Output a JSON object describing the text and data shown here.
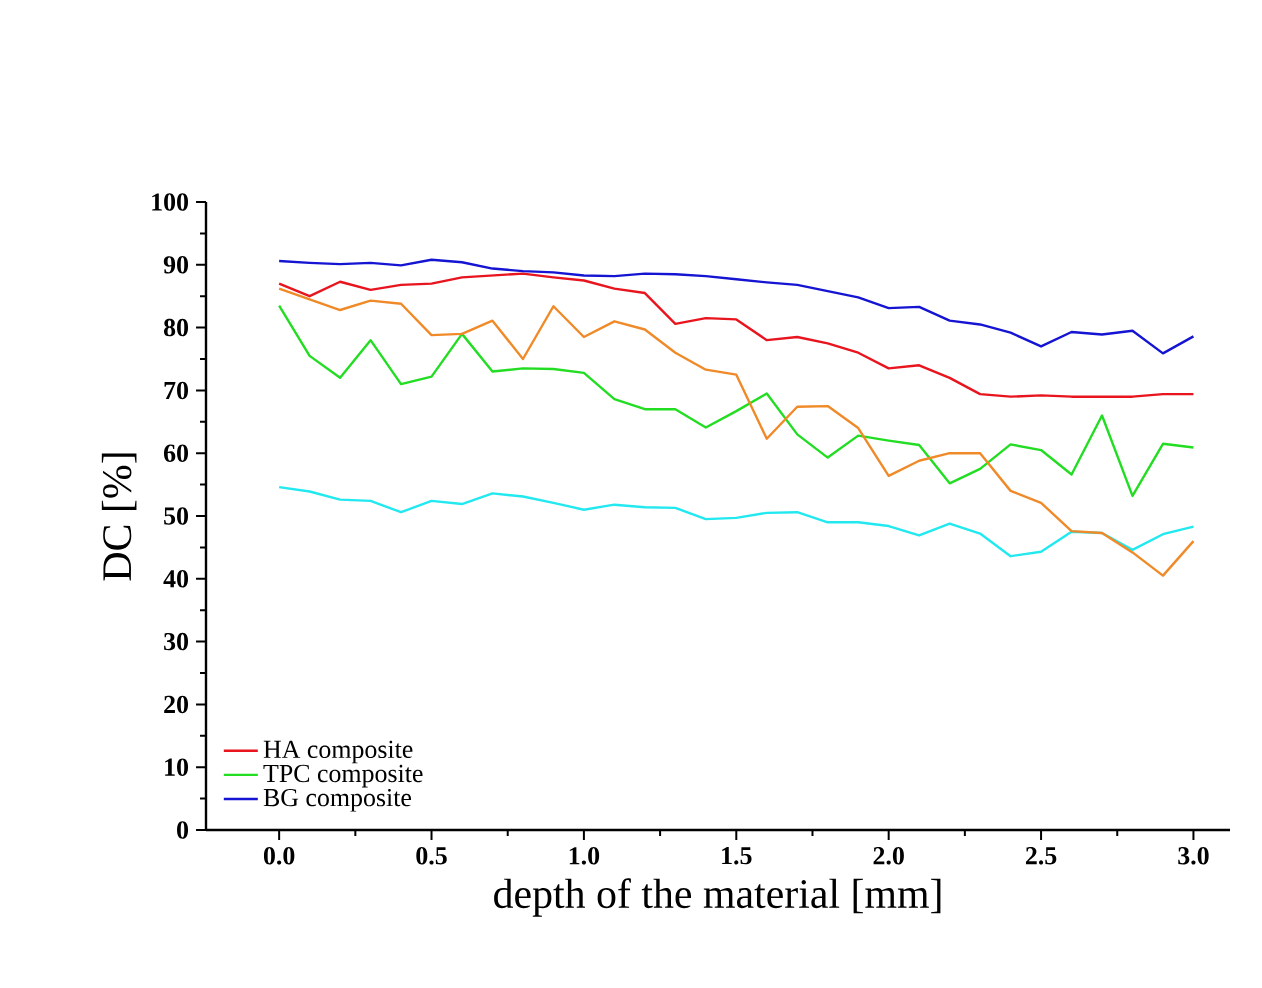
{
  "chart_data": {
    "type": "line",
    "xlabel": "depth of the material [mm]",
    "ylabel": "DC [%]",
    "x": [
      0,
      0.1,
      0.2,
      0.3,
      0.4,
      0.5,
      0.6,
      0.7,
      0.8,
      0.9,
      1.0,
      1.1,
      1.2,
      1.3,
      1.4,
      1.5,
      1.6,
      1.7,
      1.8,
      1.9,
      2.0,
      2.1,
      2.2,
      2.3,
      2.4,
      2.5,
      2.6,
      2.7,
      2.8,
      2.9,
      3.0
    ],
    "xlim": [
      -0.24,
      3.12
    ],
    "xticks": [
      {
        "value": 0,
        "label": "0.0"
      },
      {
        "value": 0.5,
        "label": "0.5"
      },
      {
        "value": 1,
        "label": "1.0"
      },
      {
        "value": 1.5,
        "label": "1.5"
      },
      {
        "value": 2,
        "label": "2.0"
      },
      {
        "value": 2.5,
        "label": "2.5"
      },
      {
        "value": 3,
        "label": "3.0"
      }
    ],
    "ylim": [
      0,
      100
    ],
    "yticks": [
      0,
      10,
      20,
      30,
      40,
      50,
      60,
      70,
      80,
      90,
      100
    ],
    "legend": "bottom left",
    "grid": false,
    "marker": "none",
    "line_style": "solid",
    "series": [
      {
        "name": "HA composite",
        "color": "#e8141e",
        "values": [
          87,
          85,
          87.3,
          86,
          86.8,
          87,
          88,
          88.3,
          88.6,
          88,
          87.5,
          86.2,
          85.5,
          80.6,
          81.5,
          81.3,
          78,
          78.5,
          77.5,
          76,
          73.5,
          74,
          72,
          69.4,
          69,
          69.2,
          69,
          69,
          69,
          69.4,
          69.4
        ]
      },
      {
        "name": "TPC composite",
        "color": "#22dd22",
        "values": [
          83.5,
          75.5,
          72,
          78,
          71,
          72.2,
          79,
          73,
          73.5,
          73.4,
          72.8,
          68.6,
          67,
          67,
          64.1,
          66.7,
          69.5,
          63,
          59.3,
          62.8,
          62,
          61.3,
          55.2,
          57.5,
          61.4,
          60.5,
          56.6,
          66,
          53.2,
          61.5,
          60.9
        ]
      },
      {
        "name": "BG composite",
        "color": "#1414d2",
        "values": [
          90.6,
          90.3,
          90.1,
          90.3,
          89.9,
          90.8,
          90.4,
          89.4,
          89.0,
          88.8,
          88.3,
          88.2,
          88.6,
          88.5,
          88.2,
          87.7,
          87.2,
          86.8,
          85.8,
          84.8,
          83.1,
          83.3,
          81.1,
          80.5,
          79.2,
          77,
          79.3,
          78.9,
          79.5,
          75.9,
          78.6
        ]
      },
      {
        "color": "#22e8f0",
        "values": [
          54.6,
          53.9,
          52.6,
          52.4,
          50.6,
          52.4,
          51.9,
          53.6,
          53.1,
          52.1,
          51,
          51.8,
          51.4,
          51.3,
          49.5,
          49.7,
          50.5,
          50.6,
          49,
          49,
          48.4,
          46.9,
          48.8,
          47.2,
          43.6,
          44.3,
          47.5,
          47.3,
          44.6,
          47.1,
          48.3
        ]
      },
      {
        "color": "#f08a28",
        "values": [
          86.2,
          84.5,
          82.8,
          84.3,
          83.8,
          78.8,
          79,
          81.1,
          75,
          83.4,
          78.5,
          81,
          79.7,
          76,
          73.3,
          72.5,
          62.3,
          67.4,
          67.5,
          64,
          56.4,
          58.8,
          60,
          60,
          54,
          52.1,
          47.6,
          47.3,
          44.2,
          40.5,
          46
        ]
      }
    ]
  }
}
